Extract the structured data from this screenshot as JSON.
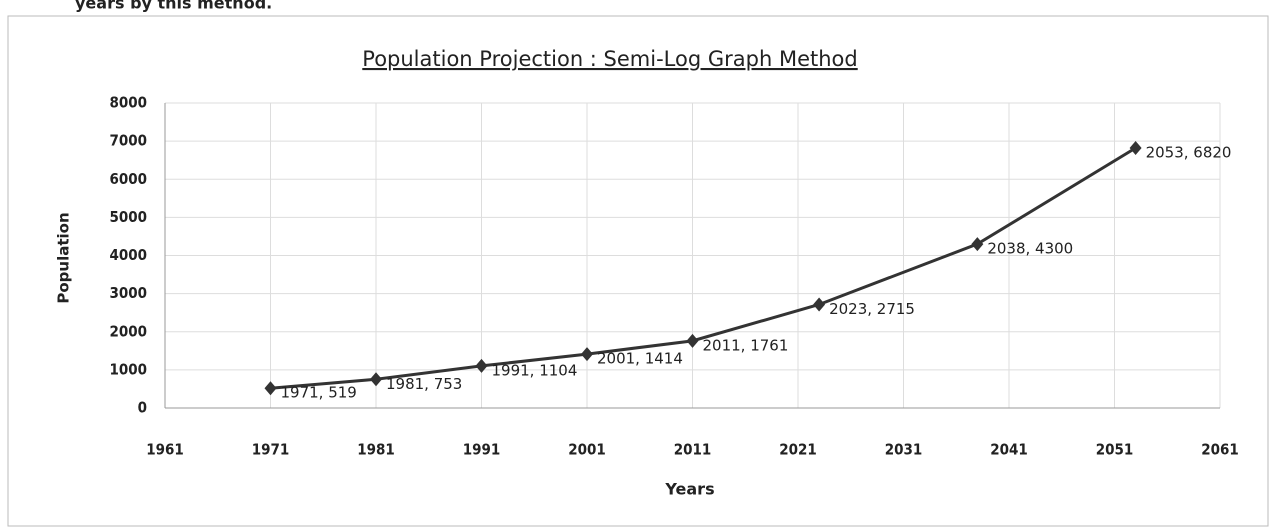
{
  "header_text": "years by this method.",
  "chart_data": {
    "type": "line",
    "title": "Population Projection : Semi-Log Graph Method",
    "x_label": "Years",
    "y_label": "Population",
    "series": [
      {
        "name": "Population",
        "color": "#333333",
        "x": [
          1971,
          1981,
          1991,
          2001,
          2011,
          2023,
          2038,
          2053
        ],
        "values": [
          519,
          753,
          1104,
          1414,
          1761,
          2715,
          4300,
          6820
        ],
        "value_labels": [
          "1971, 519",
          "1981, 753",
          "1991, 1104",
          "2001, 1414",
          "2011, 1761",
          "2023, 2715",
          "2038, 4300",
          "2053, 6820"
        ]
      }
    ],
    "xlim": [
      1961,
      2061
    ],
    "xticks": [
      1961,
      1971,
      1981,
      1991,
      2001,
      2011,
      2021,
      2031,
      2041,
      2051,
      2061
    ],
    "ylim": [
      0,
      8000
    ],
    "yticks": [
      0,
      1000,
      2000,
      3000,
      4000,
      5000,
      6000,
      7000,
      8000
    ],
    "grid": true
  }
}
